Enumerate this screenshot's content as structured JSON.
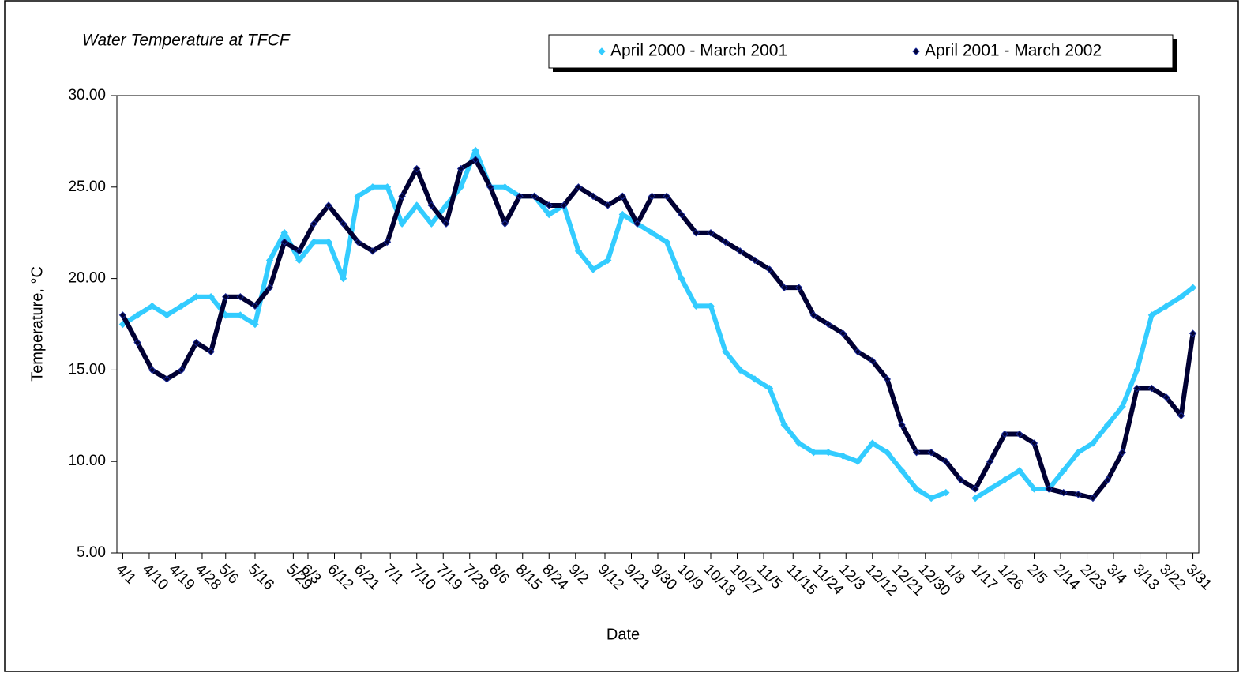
{
  "chart_data": {
    "type": "line",
    "title": "Water Temperature at TFCF",
    "x_label": "Date",
    "y_label": "Temperature, °C",
    "x": [
      0,
      5,
      10,
      15,
      20,
      25,
      30,
      35,
      40,
      45,
      50,
      55,
      60,
      65,
      70,
      75,
      80,
      85,
      90,
      95,
      100,
      105,
      110,
      115,
      120,
      125,
      130,
      135,
      140,
      145,
      150,
      155,
      160,
      165,
      170,
      175,
      180,
      185,
      190,
      195,
      200,
      205,
      210,
      215,
      220,
      225,
      230,
      235,
      240,
      245,
      250,
      255,
      260,
      265,
      270,
      275,
      280,
      285,
      290,
      295,
      300,
      305,
      310,
      315,
      320,
      325,
      330,
      335,
      340,
      345,
      350,
      355,
      360,
      364
    ],
    "series": [
      {
        "name": "April 2000 - March 2001",
        "color": "#33ccff",
        "values": [
          17.5,
          18,
          18.5,
          18,
          18.5,
          19,
          19,
          18,
          18,
          17.5,
          21,
          22.5,
          21,
          22,
          22,
          20,
          24.5,
          25,
          25,
          23,
          24,
          23,
          24,
          25,
          27,
          25,
          25,
          24.5,
          24.5,
          23.5,
          24,
          21.5,
          20.5,
          21,
          23.5,
          23,
          22.5,
          22,
          20,
          18.5,
          18.5,
          16,
          15,
          14.5,
          14,
          12,
          11,
          10.5,
          10.5,
          10.3,
          10,
          11,
          10.5,
          9.5,
          8.5,
          8,
          8.3,
          null,
          8,
          8.5,
          9,
          9.5,
          8.5,
          8.5,
          9.5,
          10.5,
          11,
          12,
          13,
          15,
          18,
          18.5,
          19,
          19.5
        ]
      },
      {
        "name": "April 2001 - March 2002",
        "color": "#000033",
        "values": [
          18,
          16.5,
          15,
          14.5,
          15,
          16.5,
          16,
          19,
          19,
          18.5,
          19.5,
          22,
          21.5,
          23,
          24,
          23,
          22,
          21.5,
          22,
          24.5,
          26,
          24,
          23,
          26,
          26.5,
          25,
          23,
          24.5,
          24.5,
          24,
          24,
          25,
          24.5,
          24,
          24.5,
          23,
          24.5,
          24.5,
          23.5,
          22.5,
          22.5,
          22,
          21.5,
          21,
          20.5,
          19.5,
          19.5,
          18,
          17.5,
          17,
          16,
          15.5,
          14.5,
          12,
          10.5,
          10.5,
          10,
          9,
          8.5,
          10,
          11.5,
          11.5,
          11,
          8.5,
          8.3,
          8.2,
          8,
          9,
          10.5,
          14,
          14,
          13.5,
          12.5,
          17
        ]
      }
    ],
    "xlim": [
      -2,
      366
    ],
    "xticks": [
      {
        "value": 0,
        "label": "4/1"
      },
      {
        "value": 9,
        "label": "4/10"
      },
      {
        "value": 18,
        "label": "4/19"
      },
      {
        "value": 27,
        "label": "4/28"
      },
      {
        "value": 35,
        "label": "5/6"
      },
      {
        "value": 45,
        "label": "5/16"
      },
      {
        "value": 58,
        "label": "5/29"
      },
      {
        "value": 63,
        "label": "6/3"
      },
      {
        "value": 72,
        "label": "6/12"
      },
      {
        "value": 81,
        "label": "6/21"
      },
      {
        "value": 91,
        "label": "7/1"
      },
      {
        "value": 100,
        "label": "7/10"
      },
      {
        "value": 109,
        "label": "7/19"
      },
      {
        "value": 118,
        "label": "7/28"
      },
      {
        "value": 127,
        "label": "8/6"
      },
      {
        "value": 136,
        "label": "8/15"
      },
      {
        "value": 145,
        "label": "8/24"
      },
      {
        "value": 154,
        "label": "9/2"
      },
      {
        "value": 164,
        "label": "9/12"
      },
      {
        "value": 173,
        "label": "9/21"
      },
      {
        "value": 182,
        "label": "9/30"
      },
      {
        "value": 191,
        "label": "10/9"
      },
      {
        "value": 200,
        "label": "10/18"
      },
      {
        "value": 209,
        "label": "10/27"
      },
      {
        "value": 218,
        "label": "11/5"
      },
      {
        "value": 228,
        "label": "11/15"
      },
      {
        "value": 237,
        "label": "11/24"
      },
      {
        "value": 246,
        "label": "12/3"
      },
      {
        "value": 255,
        "label": "12/12"
      },
      {
        "value": 264,
        "label": "12/21"
      },
      {
        "value": 273,
        "label": "12/30"
      },
      {
        "value": 282,
        "label": "1/8"
      },
      {
        "value": 291,
        "label": "1/17"
      },
      {
        "value": 300,
        "label": "1/26"
      },
      {
        "value": 310,
        "label": "2/5"
      },
      {
        "value": 319,
        "label": "2/14"
      },
      {
        "value": 328,
        "label": "2/23"
      },
      {
        "value": 337,
        "label": "3/4"
      },
      {
        "value": 346,
        "label": "3/13"
      },
      {
        "value": 355,
        "label": "3/22"
      },
      {
        "value": 364,
        "label": "3/31"
      }
    ],
    "ylim": [
      5,
      30
    ],
    "yticks": [
      {
        "value": 5,
        "label": "5.00"
      },
      {
        "value": 10,
        "label": "10.00"
      },
      {
        "value": 15,
        "label": "15.00"
      },
      {
        "value": 20,
        "label": "20.00"
      },
      {
        "value": 25,
        "label": "25.00"
      },
      {
        "value": 30,
        "label": "30.00"
      }
    ],
    "grid": false,
    "legend": "top-right"
  }
}
